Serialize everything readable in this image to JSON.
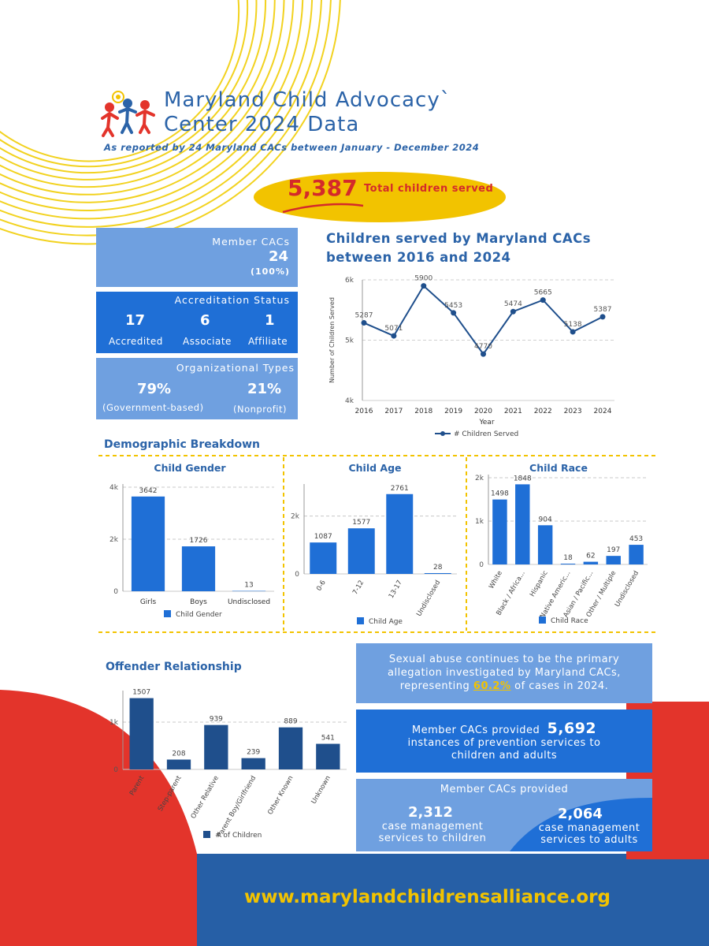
{
  "header": {
    "title_line1": "Maryland Child Advocacy`",
    "title_line2": "Center 2024 Data",
    "subtitle": "As reported by 24 Maryland CACs between January - December 2024"
  },
  "total": {
    "value": "5,387",
    "label": "Total children served"
  },
  "member_cacs": {
    "label": "Member CACs",
    "value": "24",
    "pct": "(100%)"
  },
  "accreditation": {
    "label": "Accreditation Status",
    "items": [
      {
        "value": "17",
        "label": "Accredited"
      },
      {
        "value": "6",
        "label": "Associate"
      },
      {
        "value": "1",
        "label": "Affiliate"
      }
    ]
  },
  "org_types": {
    "label": "Organizational Types",
    "items": [
      {
        "value": "79%",
        "label": "(Government-based)"
      },
      {
        "value": "21%",
        "label": "(Nonprofit)"
      }
    ]
  },
  "sections": {
    "demographic": "Demographic Breakdown",
    "offender": "Offender Relationship"
  },
  "info": {
    "sexual_abuse_l1": "Sexual abuse continues to be the primary",
    "sexual_abuse_l2": "allegation investigated by Maryland CACs,",
    "sexual_abuse_l3a": "representing ",
    "sexual_abuse_pct": "60.2%",
    "sexual_abuse_l3b": " of cases in 2024.",
    "prevention_l1": "Member CACs provided",
    "prevention_value": "5,692",
    "prevention_l2": "instances of prevention services to",
    "prevention_l3": "children and adults",
    "case_header": "Member CACs provided",
    "case_children_value": "2,312",
    "case_children_l1": "case management",
    "case_children_l2": "services to children",
    "case_adults_value": "2,064",
    "case_adults_l1": "case management",
    "case_adults_l2": "services to adults"
  },
  "footer": {
    "url": "www.marylandchildrensalliance.org"
  },
  "colors": {
    "primary_blue": "#1f6fd6",
    "light_blue": "#6fa0e0",
    "navy": "#1f4f8c",
    "yellow": "#f2c300",
    "red": "#e3342b",
    "footer_blue": "#265fa6"
  },
  "chart_data": [
    {
      "id": "line",
      "type": "line",
      "title_line1": "Children served by Maryland CACs",
      "title_line2": "between 2016 and 2024",
      "x": [
        "2016",
        "2017",
        "2018",
        "2019",
        "2020",
        "2021",
        "2022",
        "2023",
        "2024"
      ],
      "series": [
        {
          "name": "# Children Served",
          "values": [
            5287,
            5071,
            5900,
            5453,
            4770,
            5474,
            5665,
            5138,
            5387
          ]
        }
      ],
      "xlabel": "Year",
      "ylabel": "Number of Children Served",
      "ylim": [
        4000,
        6000
      ],
      "yticks": [
        "4k",
        "5k",
        "6k"
      ],
      "legend": "bottom"
    },
    {
      "id": "gender",
      "type": "bar",
      "title": "Child Gender",
      "categories": [
        "Girls",
        "Boys",
        "Undisclosed"
      ],
      "values": [
        3642,
        1726,
        13
      ],
      "ylim": [
        0,
        4000
      ],
      "yticks": [
        "0",
        "2k",
        "4k"
      ],
      "legend_label": "Child Gender"
    },
    {
      "id": "age",
      "type": "bar",
      "title": "Child Age",
      "categories": [
        "0-6",
        "7-12",
        "13-17",
        "Undisclosed"
      ],
      "values": [
        1087,
        1577,
        2761,
        28
      ],
      "ylim": [
        0,
        3000
      ],
      "yticks": [
        "0",
        "2k"
      ],
      "legend_label": "Child Age"
    },
    {
      "id": "race",
      "type": "bar",
      "title": "Child Race",
      "categories": [
        "White",
        "Black / Africa...",
        "Hispanic",
        "Native Americ...",
        "Asian / Pacific...",
        "Other / Multiple",
        "Undisclosed"
      ],
      "values": [
        1498,
        1848,
        904,
        18,
        62,
        197,
        453
      ],
      "ylim": [
        0,
        2000
      ],
      "yticks": [
        "0",
        "1k",
        "2k"
      ],
      "legend_label": "Child Race"
    },
    {
      "id": "offender",
      "type": "bar",
      "categories": [
        "Parent",
        "Step-parent",
        "Other Relative",
        "Parent Boy/Girlfriend",
        "Other Known",
        "Unknown"
      ],
      "values": [
        1507,
        208,
        939,
        239,
        889,
        541
      ],
      "ylim": [
        0,
        1600
      ],
      "yticks": [
        "0",
        "1k"
      ],
      "legend_label": "# of Children"
    }
  ]
}
